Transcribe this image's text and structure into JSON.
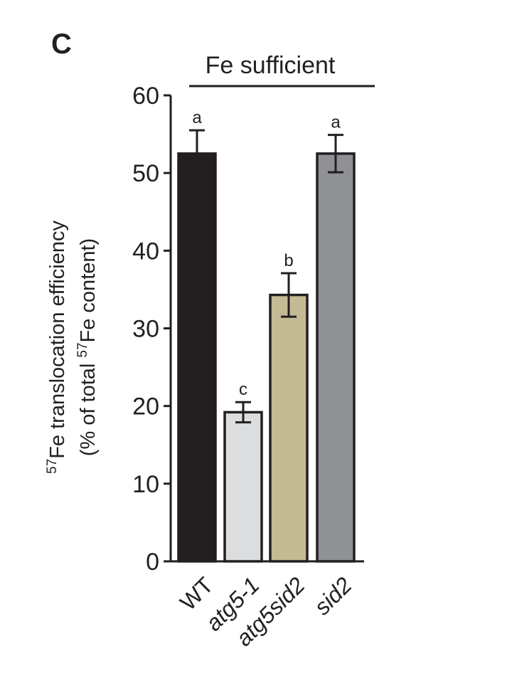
{
  "panel_label": "C",
  "chart_data": {
    "type": "bar",
    "condition_label": "Fe sufficient",
    "ylabel": {
      "line1": {
        "sup": "57",
        "text": "Fe translocation efficiency"
      },
      "line2": {
        "pre": "(% of total ",
        "sup": "57",
        "post": "Fe content)"
      }
    },
    "ylim": [
      0,
      60
    ],
    "yticks": [
      0,
      10,
      20,
      30,
      40,
      50,
      60
    ],
    "categories": [
      "WT",
      "atg5-1",
      "atg5sid2",
      "sid2"
    ],
    "categories_italic": [
      false,
      true,
      true,
      true
    ],
    "values": [
      52.5,
      19.2,
      34.3,
      52.5
    ],
    "errors": [
      3.0,
      1.3,
      2.8,
      2.4
    ],
    "significance": [
      "a",
      "c",
      "b",
      "a"
    ],
    "bar_colors": [
      "#231f20",
      "#dcdddf",
      "#c4bb94",
      "#8f9194"
    ],
    "grid": false,
    "legend": "none"
  }
}
